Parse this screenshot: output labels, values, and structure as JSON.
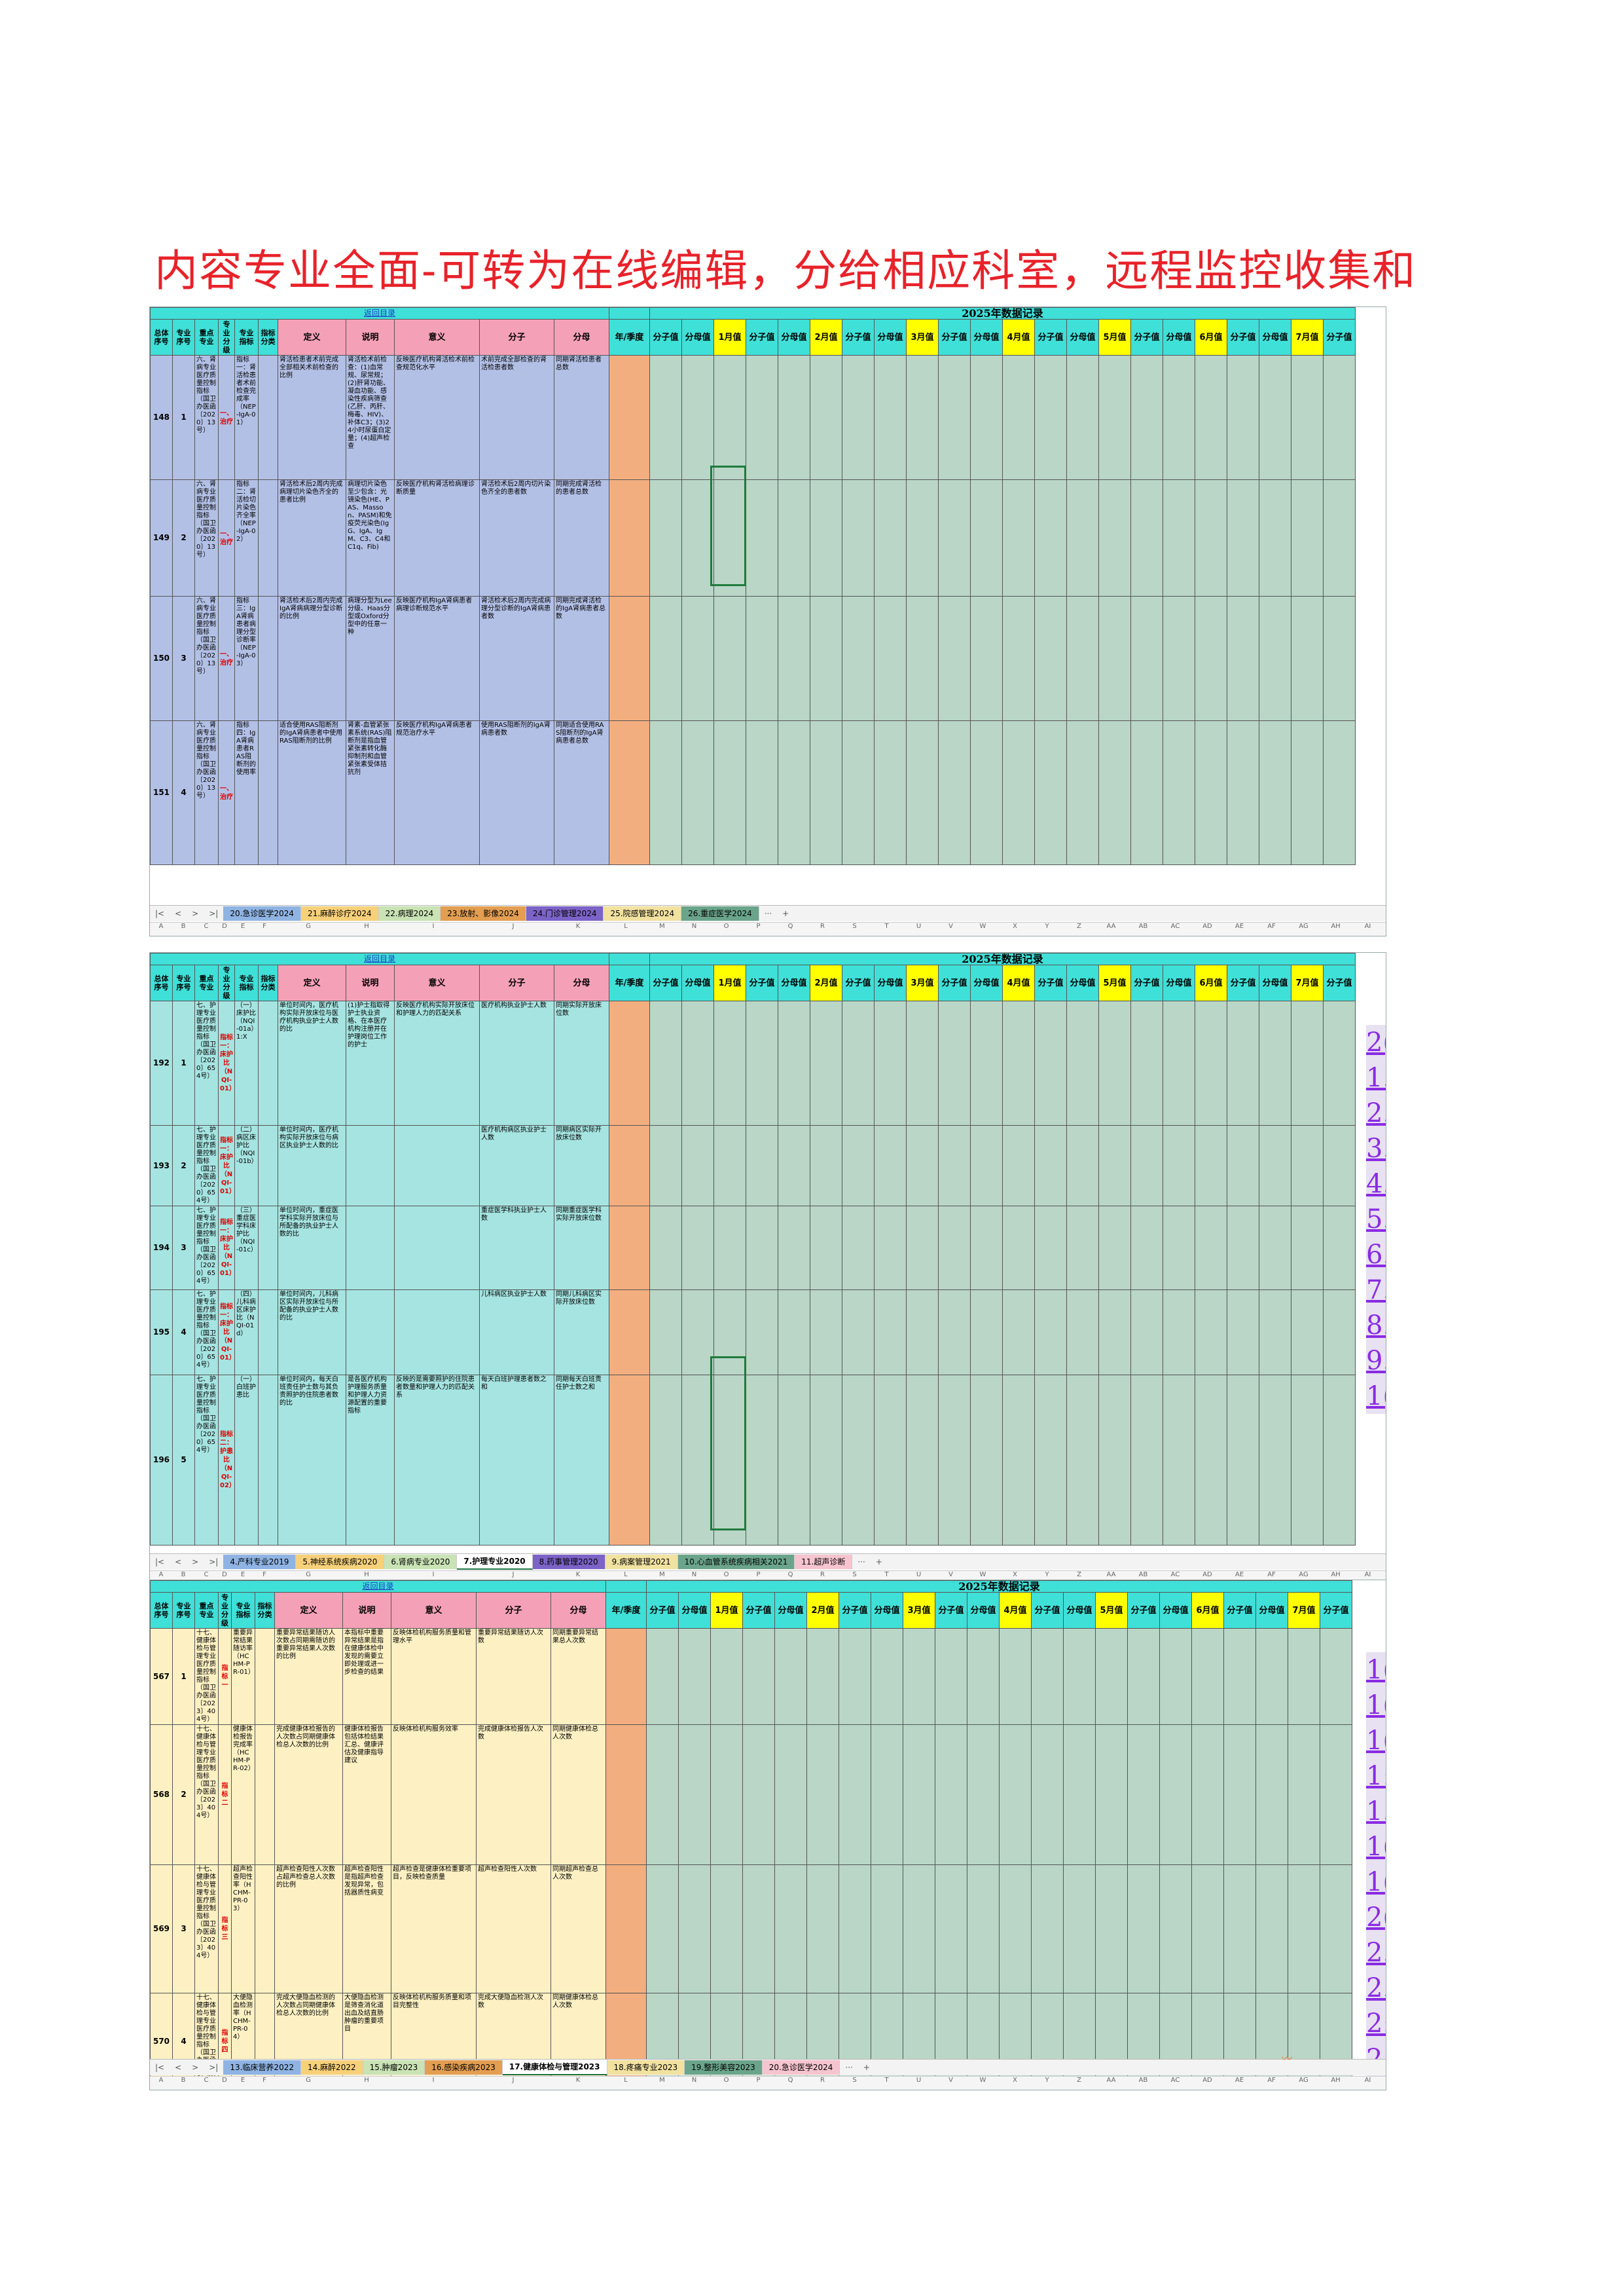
{
  "headline": "内容专业全面-可转为在线编辑，分给相应科室，远程监控收集和",
  "year_title": "2025年数据记录",
  "link_label": "返回目录",
  "headers": {
    "total_no": "总体序号",
    "spec_no": "专业序号",
    "key_spec": "重点专业",
    "spec_cat": "专业分级",
    "spec_ind": "专业指标",
    "ind_cat": "指标分类",
    "definition": "定义",
    "explain": "说明",
    "meaning": "意义",
    "numerator": "分子",
    "denominator": "分母",
    "period": "年/季度"
  },
  "month_headers": [
    "分子值",
    "分母值",
    "1月值",
    "分子值",
    "分母值",
    "2月值",
    "分子值",
    "分母值",
    "3月值",
    "分子值",
    "分母值",
    "4月值",
    "分子值",
    "分母值",
    "5月值",
    "分子值",
    "分母值",
    "6月值",
    "分子值",
    "分母值",
    "7月值",
    "分子值"
  ],
  "col_letters": [
    "A",
    "B",
    "C",
    "D",
    "E",
    "F",
    "G",
    "H",
    "I",
    "J",
    "K",
    "L",
    "M",
    "N",
    "O",
    "P",
    "Q",
    "R",
    "S",
    "T",
    "U",
    "V",
    "W",
    "X",
    "Y",
    "Z",
    "AA",
    "AB",
    "AC",
    "AD",
    "AE",
    "AF",
    "AG",
    "AH",
    "AI"
  ],
  "panels": [
    {
      "theme": "kidney",
      "rows": [
        {
          "total": "148",
          "no": "1",
          "key": "六、肾病专业医疗质量控制指标（国卫办医函〔2020〕13号）",
          "cat": "一、治疗",
          "ind": "指标一：肾活检患者术前检查完成率（NEP-IgA-01）",
          "def": "肾活检患者术前完成全部相关术前检查的比例",
          "exp": "肾活检术前检查：(1)血常规、尿常规；(2)肝肾功能、凝血功能、感染性疾病筛查(乙肝、丙肝、梅毒、HIV)、补体C3；(3)24小时尿蛋白定量；(4)超声检查",
          "mean": "反映医疗机构肾活检术前检查规范化水平",
          "num": "术前完成全部检查的肾活检患者数",
          "den": "同期肾活检患者总数"
        },
        {
          "total": "149",
          "no": "2",
          "key": "六、肾病专业医疗质量控制指标（国卫办医函〔2020〕13号）",
          "cat": "一、治疗",
          "ind": "指标二：肾活检切片染色齐全率（NEP-IgA-02）",
          "def": "肾活检术后2周内完成病理切片染色齐全的患者比例",
          "exp": "病理切片染色至少包含：光镜染色(HE、PAS、Masson、PASM)和免疫荧光染色(IgG、IgA、IgM、C3、C4和C1q、Fib)",
          "mean": "反映医疗机构肾活检病理诊断质量",
          "num": "肾活检术后2周内切片染色齐全的患者数",
          "den": "同期完成肾活检的患者总数"
        },
        {
          "total": "150",
          "no": "3",
          "key": "六、肾病专业医疗质量控制指标（国卫办医函〔2020〕13号）",
          "cat": "一、治疗",
          "ind": "指标三：IgA肾病患者病理分型诊断率（NEP-IgA-03）",
          "def": "肾活检术后2周内完成IgA肾病病理分型诊断的比例",
          "exp": "病理分型为Lee分级、Haas分型或Oxford分型中的任意一种",
          "mean": "反映医疗机构IgA肾病患者病理诊断规范水平",
          "num": "肾活检术后2周内完成病理分型诊断的IgA肾病患者数",
          "den": "同期完成肾活检的IgA肾病患者总数"
        },
        {
          "total": "151",
          "no": "4",
          "key": "六、肾病专业医疗质量控制指标（国卫办医函〔2020〕13号）",
          "cat": "一、治疗",
          "ind": "指标四：IgA肾病患者RAS阻断剂的使用率",
          "def": "适合使用RAS阻断剂的IgA肾病患者中使用RAS阻断剂的比例",
          "exp": "肾素-血管紧张素系统(RAS)阻断剂是指血管紧张素转化酶抑制剂和血管紧张素受体拮抗剂",
          "mean": "反映医疗机构IgA肾病患者规范治疗水平",
          "num": "使用RAS阻断剂的IgA肾病患者数",
          "den": "同期适合使用RAS阻断剂的IgA肾病患者总数"
        }
      ],
      "tabs": [
        "20.急诊医学2024",
        "21.麻醉诊疗2024",
        "22.病理2024",
        "23.放射、影像2024",
        "24.门诊管理2024",
        "25.院感管理2024",
        "26.重症医学2024"
      ],
      "active_tab": -1
    },
    {
      "theme": "nursing",
      "rows": [
        {
          "total": "192",
          "no": "1",
          "key": "七、护理专业医疗质量控制指标（国卫办医函〔2020〕654号）",
          "cat": "指标一：床护比（NQI-01）",
          "ind": "（一）床护比（NQI-01a）1:X",
          "def": "单位时间内，医疗机构实际开放床位与医疗机构执业护士人数的比",
          "exp": "(1)护士指取得护士执业资格、在本医疗机构注册并在护理岗位工作的护士",
          "mean": "反映医疗机构实际开放床位和护理人力的匹配关系",
          "num": "医疗机构执业护士人数",
          "den": "同期实际开放床位数"
        },
        {
          "total": "193",
          "no": "2",
          "key": "七、护理专业医疗质量控制指标（国卫办医函〔2020〕654号）",
          "cat": "指标一：床护比（NQI-01）",
          "ind": "（二）病区床护比（NQI-01b）",
          "def": "单位时间内，医疗机构实际开放床位与病区执业护士人数的比",
          "exp": "",
          "mean": "",
          "num": "医疗机构病区执业护士人数",
          "den": "同期病区实际开放床位数"
        },
        {
          "total": "194",
          "no": "3",
          "key": "七、护理专业医疗质量控制指标（国卫办医函〔2020〕654号）",
          "cat": "指标一：床护比（NQI-01）",
          "ind": "（三）重症医学科床护比（NQI-01c）",
          "def": "单位时间内，重症医学科实际开放床位与所配备的执业护士人数的比",
          "exp": "",
          "mean": "",
          "num": "重症医学科执业护士人数",
          "den": "同期重症医学科实际开放床位数"
        },
        {
          "total": "195",
          "no": "4",
          "key": "七、护理专业医疗质量控制指标（国卫办医函〔2020〕654号）",
          "cat": "指标一：床护比（NQI-01）",
          "ind": "（四）儿科病区床护比（NQI-01d）",
          "def": "单位时间内，儿科病区实际开放床位与所配备的执业护士人数的比",
          "exp": "",
          "mean": "",
          "num": "儿科病区执业护士人数",
          "den": "同期儿科病区实际开放床位数"
        },
        {
          "total": "196",
          "no": "5",
          "key": "七、护理专业医疗质量控制指标（国卫办医函〔2020〕654号）",
          "cat": "指标二：护患比（NQI-02）",
          "ind": "（一）白班护患比",
          "def": "单位时间内，每天白班责任护士数与其负责照护的住院患者数的比",
          "exp": "是各医疗机构护理服务质量和护理人力资源配置的重要指标",
          "mean": "反映的是需要照护的住院患者数量和护理人力的匹配关系",
          "num": "每天白班护理患者数之和",
          "den": "同期每天白班责任护士数之和"
        }
      ],
      "tabs": [
        "4.产科专业2019",
        "5.神经系统疾病2020",
        "6.肾病专业2020",
        "7.护理专业2020",
        "8.药事管理2020",
        "9.病案管理2021",
        "10.心血管系统疾病相关2021",
        "11.超声诊断"
      ],
      "active_tab": 3,
      "side_numbers": [
        "2(",
        "1.",
        "2.",
        "3.",
        "4.",
        "5.",
        "6.",
        "7.",
        "8.",
        "9.",
        "1("
      ]
    },
    {
      "theme": "health",
      "rows": [
        {
          "total": "567",
          "no": "1",
          "key": "十七、健康体检与管理专业医疗质量控制指标（国卫办医函〔2023〕404号）",
          "cat": "指标一",
          "ind": "重要异常结果随访率（HCHM-PR-01）",
          "def": "重要异常结果随访人次数占同期需随访的重要异常结果人次数的比例",
          "exp": "本指标中重要异常结果是指在健康体检中发现的需要立即处理或进一步检查的结果",
          "mean": "反映体检机构服务质量和管理水平",
          "num": "重要异常结果随访人次数",
          "den": "同期重要异常结果总人次数"
        },
        {
          "total": "568",
          "no": "2",
          "key": "十七、健康体检与管理专业医疗质量控制指标（国卫办医函〔2023〕404号）",
          "cat": "指标二",
          "ind": "健康体检报告完成率（HCHM-PR-02）",
          "def": "完成健康体检报告的人次数占同期健康体检总人次数的比例",
          "exp": "健康体检报告包括体检结果汇总、健康评估及健康指导建议",
          "mean": "反映体检机构服务效率",
          "num": "完成健康体检报告人次数",
          "den": "同期健康体检总人次数"
        },
        {
          "total": "569",
          "no": "3",
          "key": "十七、健康体检与管理专业医疗质量控制指标（国卫办医函〔2023〕404号）",
          "cat": "指标三",
          "ind": "超声检查阳性率（HCHM-PR-03）",
          "def": "超声检查阳性人次数占超声检查总人次数的比例",
          "exp": "超声检查阳性是指超声检查发现异常，包括器质性病变",
          "mean": "超声检查是健康体检重要项目，反映检查质量",
          "num": "超声检查阳性人次数",
          "den": "同期超声检查总人次数"
        },
        {
          "total": "570",
          "no": "4",
          "key": "十七、健康体检与管理专业医疗质量控制指标（国卫办医函〔2023〕404号）",
          "cat": "指标四",
          "ind": "大便隐血检测率（HCHM-PR-04）",
          "def": "完成大便隐血检测的人次数占同期健康体检总人次数的比例",
          "exp": "大便隐血检测是筛查消化道出血及结直肠肿瘤的重要项目",
          "mean": "反映体检机构服务质量和项目完整性",
          "num": "完成大便隐血检测人次数",
          "den": "同期健康体检总人次数"
        }
      ],
      "tabs": [
        "13.临床营养2022",
        "14.麻醉2022",
        "15.肿瘤2023",
        "16.感染疾病2023",
        "17.健康体检与管理2023",
        "18.疼痛专业2023",
        "19.整形美容2023",
        "20.急诊医学2024"
      ],
      "active_tab": 4,
      "side_numbers": [
        "1(",
        "1(",
        "1(",
        "1:",
        "1.",
        "1(",
        "1(",
        "2(",
        "2.",
        "2.",
        "2:",
        "2.",
        "2:",
        "2("
      ]
    },
    {
      "stamp": "ℳ"
    }
  ],
  "colors": {
    "header_teal": "#3fe0d8",
    "header_pink": "#f4a1b8",
    "period_orange": "#f3ae7f",
    "month_yellow": "#ffff00",
    "data_green": "#b9d6c7",
    "kidney_body": "#b3c0e6",
    "nursing_body": "#a6e4e1",
    "health_body": "#fdf1c3",
    "headline_red": "#e8222a"
  }
}
